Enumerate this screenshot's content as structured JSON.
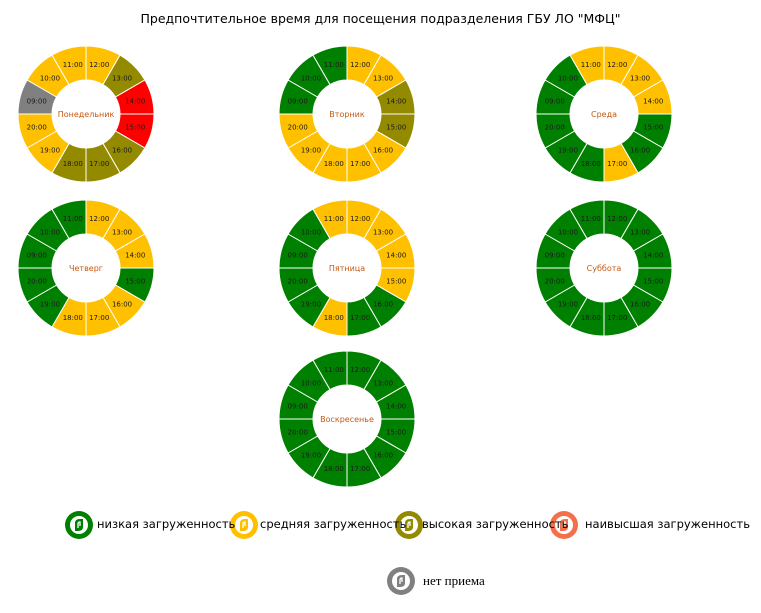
{
  "title": "Предпочтительное время для посещения подразделения ГБУ ЛО \"МФЦ\"",
  "colors": {
    "low": "#008000",
    "medium": "#FFC000",
    "high": "#948A00",
    "highest": "#FF0000",
    "closed": "#808080",
    "day_label": "#C65911",
    "legend_highest": "#F4704A"
  },
  "chart_data": {
    "type": "donut",
    "hours": [
      "12:00",
      "13:00",
      "14:00",
      "15:00",
      "16:00",
      "17:00",
      "18:00",
      "19:00",
      "20:00",
      "09:00",
      "10:00",
      "11:00"
    ],
    "days": [
      {
        "label": "Понедельник",
        "levels": [
          "medium",
          "high",
          "highest",
          "highest",
          "high",
          "high",
          "high",
          "medium",
          "medium",
          "closed",
          "medium",
          "medium"
        ]
      },
      {
        "label": "Вторник",
        "levels": [
          "medium",
          "medium",
          "high",
          "high",
          "medium",
          "medium",
          "medium",
          "medium",
          "medium",
          "low",
          "low",
          "low"
        ]
      },
      {
        "label": "Среда",
        "levels": [
          "medium",
          "medium",
          "medium",
          "low",
          "low",
          "medium",
          "low",
          "low",
          "low",
          "low",
          "low",
          "medium"
        ]
      },
      {
        "label": "Четверг",
        "levels": [
          "medium",
          "medium",
          "medium",
          "low",
          "medium",
          "medium",
          "medium",
          "low",
          "low",
          "low",
          "low",
          "low"
        ]
      },
      {
        "label": "Пятница",
        "levels": [
          "medium",
          "medium",
          "medium",
          "medium",
          "low",
          "low",
          "medium",
          "low",
          "low",
          "low",
          "low",
          "medium"
        ]
      },
      {
        "label": "Суббота",
        "levels": [
          "low",
          "low",
          "low",
          "low",
          "low",
          "low",
          "low",
          "low",
          "low",
          "low",
          "low",
          "low"
        ]
      },
      {
        "label": "Воскресенье",
        "levels": [
          "low",
          "low",
          "low",
          "low",
          "low",
          "low",
          "low",
          "low",
          "low",
          "low",
          "low",
          "low"
        ]
      }
    ],
    "legend": [
      {
        "key": "low",
        "label": "низкая загруженность"
      },
      {
        "key": "medium",
        "label": "средняя загруженность"
      },
      {
        "key": "high",
        "label": "высокая загруженность"
      },
      {
        "key": "highest",
        "label": "наивысшая загруженность"
      },
      {
        "key": "closed",
        "label": "нет приема"
      }
    ]
  }
}
